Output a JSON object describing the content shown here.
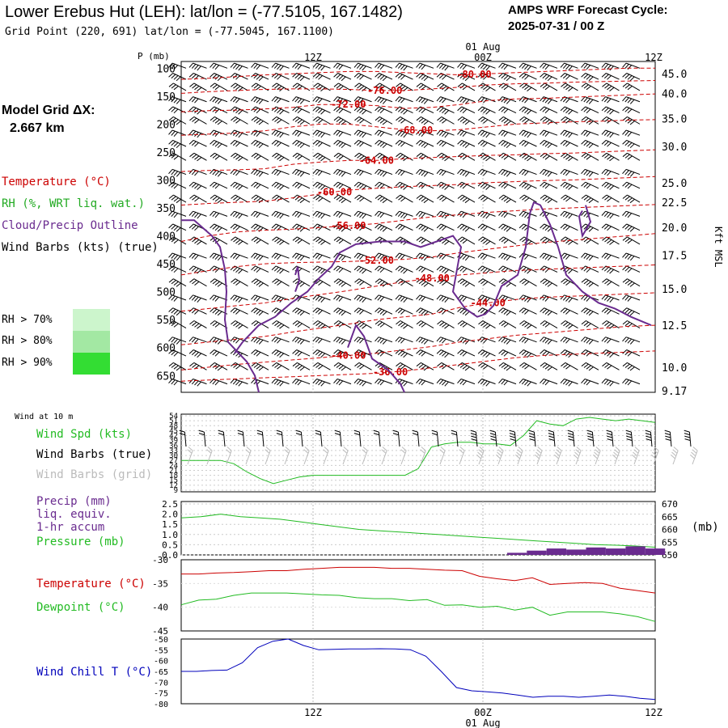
{
  "header": {
    "title": "Lower Erebus Hut (LEH):  lat/lon = (-77.5105, 167.1482)",
    "subtitle": "Grid Point (220, 691) lat/lon = (-77.5045, 167.1100)",
    "cycle_line1": "AMPS WRF Forecast Cycle:",
    "cycle_line2": "2025-07-31 / 00  Z"
  },
  "model_grid": {
    "label": "Model Grid ΔX:",
    "value": "2.667 km"
  },
  "legend": {
    "temperature": "Temperature (°C)",
    "rh": "RH (%, WRT liq. wat.)",
    "cloud": "Cloud/Precip Outline",
    "wind_barbs": "Wind Barbs (kts) (true)",
    "rh70": "RH > 70%",
    "rh80": "RH > 80%",
    "rh90": "RH > 90%"
  },
  "colors": {
    "temperature": "#cc0000",
    "rh": "#22aa22",
    "cloud": "#6a2b8f",
    "rh70": "#ccf5cc",
    "rh80": "#a3e8a3",
    "rh90": "#33dd33",
    "wind_speed": "#22bb22",
    "dewpoint": "#22bb22",
    "wind_chill": "#0000bb",
    "precip": "#6a2b8f",
    "grid_barbs": "#bbbbbb"
  },
  "chart_data": [
    {
      "type": "line",
      "panel": "cross-section",
      "ylabel": "P (mb)",
      "yticks": [
        "100",
        "150",
        "200",
        "250",
        "300",
        "350",
        "400",
        "450",
        "500",
        "550",
        "600",
        "650"
      ],
      "time_ticks_top": [
        "12Z",
        "00Z",
        "12Z"
      ],
      "date_label_top": "01 Aug",
      "right_axis_label": "Kft MSL",
      "right_ticks": [
        "45.0",
        "40.0",
        "35.0",
        "30.0",
        "25.0",
        "22.5",
        "20.0",
        "17.5",
        "15.0",
        "12.5",
        "10.0",
        "9.17"
      ],
      "right_tick_pressure": [
        110,
        145,
        190,
        240,
        305,
        340,
        385,
        435,
        495,
        560,
        635,
        677
      ],
      "temperature_contours": [
        {
          "label": "-80.00",
          "p": [
            120,
            118,
            115,
            112,
            110,
            108,
            106,
            106,
            108,
            110,
            112,
            110,
            108,
            106,
            104,
            102,
            100,
            100
          ]
        },
        {
          "label": "-76.00",
          "p": [
            145,
            142,
            140,
            138,
            137,
            137,
            138,
            140,
            140,
            137,
            134,
            130,
            128,
            127,
            125,
            124,
            123,
            122
          ]
        },
        {
          "label": "-72.00",
          "p": [
            178,
            176,
            175,
            173,
            170,
            165,
            165,
            167,
            172,
            170,
            165,
            158,
            155,
            154,
            152,
            150,
            148,
            146
          ]
        },
        {
          "label": "-68.00",
          "p": [
            220,
            218,
            216,
            212,
            205,
            200,
            200,
            205,
            210,
            212,
            210,
            205,
            200,
            198,
            196,
            195,
            193,
            192
          ]
        },
        {
          "label": "-64.00",
          "p": [
            285,
            283,
            282,
            280,
            272,
            268,
            265,
            265,
            262,
            260,
            258,
            256,
            255,
            253,
            252,
            250,
            248,
            246
          ]
        },
        {
          "label": "-60.00",
          "p": [
            345,
            342,
            340,
            338,
            332,
            325,
            318,
            315,
            312,
            310,
            308,
            305,
            303,
            301,
            300,
            298,
            296,
            294
          ]
        },
        {
          "label": "-56.00",
          "p": [
            410,
            400,
            393,
            390,
            388,
            385,
            382,
            378,
            372,
            366,
            362,
            358,
            355,
            352,
            350,
            348,
            346,
            344
          ]
        },
        {
          "label": "-52.00",
          "p": [
            470,
            462,
            455,
            450,
            448,
            447,
            446,
            444,
            442,
            438,
            430,
            424,
            418,
            412,
            408,
            404,
            400,
            396
          ]
        },
        {
          "label": "-48.00",
          "p": [
            535,
            530,
            525,
            520,
            512,
            505,
            498,
            490,
            482,
            476,
            470,
            466,
            462,
            460,
            458,
            456,
            454,
            452
          ]
        },
        {
          "label": "-44.00",
          "p": [
            595,
            590,
            585,
            580,
            572,
            565,
            558,
            550,
            545,
            540,
            528,
            520,
            514,
            510,
            508,
            506,
            504,
            502
          ]
        },
        {
          "label": "-40.00",
          "p": [
            640,
            635,
            630,
            626,
            622,
            618,
            614,
            610,
            604,
            598,
            590,
            584,
            578,
            574,
            570,
            566,
            562,
            560
          ]
        },
        {
          "label": "-36.00",
          "p": [
            660,
            658,
            656,
            654,
            652,
            650,
            648,
            646,
            642,
            636,
            630,
            624,
            618,
            614,
            612,
            610,
            608,
            606
          ]
        }
      ],
      "temp_label_pos": [
        {
          "label": "-80.00",
          "i": 10.5
        },
        {
          "label": "-76.00",
          "i": 7.3
        },
        {
          "label": "-72.00",
          "i": 6.0
        },
        {
          "label": "-68.00",
          "i": 8.4
        },
        {
          "label": "-64.00",
          "i": 7.0
        },
        {
          "label": "-60.00",
          "i": 5.5
        },
        {
          "label": "-56.00",
          "i": 6.0
        },
        {
          "label": "-52.00",
          "i": 7.0
        },
        {
          "label": "-48.00",
          "i": 9.0
        },
        {
          "label": "-44.00",
          "i": 11.0
        },
        {
          "label": "-40.00",
          "i": 6.0
        },
        {
          "label": "-36.00",
          "i": 7.5
        }
      ]
    },
    {
      "type": "line",
      "panel": "wind",
      "label_header": "Wind at 10 m",
      "series": [
        {
          "name": "Wind Spd (kts)",
          "values": [
            27,
            27,
            27,
            27,
            25,
            20,
            16,
            13,
            15,
            17,
            18,
            18,
            18,
            18,
            18,
            18,
            18,
            18,
            22,
            35,
            37,
            38,
            38,
            37,
            37,
            36,
            42,
            51,
            49,
            48,
            52,
            53,
            52,
            51,
            52,
            51,
            50
          ]
        }
      ],
      "labels": {
        "barbs_true": "Wind Barbs (true)",
        "barbs_grid": "Wind Barbs (grid)"
      },
      "yticks": [
        "54",
        "51",
        "48",
        "45",
        "42",
        "39",
        "36",
        "33",
        "30",
        "27",
        "24",
        "21",
        "18",
        "15",
        "12",
        "9"
      ],
      "ylim": [
        9,
        54
      ]
    },
    {
      "type": "line",
      "panel": "precip-pressure",
      "series": [
        {
          "name": "Pressure (mb)",
          "values": [
            664.5,
            665,
            666,
            665,
            664.5,
            664,
            663,
            662,
            661,
            660,
            659.5,
            659,
            658.5,
            658,
            657.5,
            657,
            656.5,
            656,
            655.5,
            655,
            654.5,
            654,
            653.8,
            653.5,
            653
          ]
        },
        {
          "name": "Precip (mm)",
          "values": [
            0,
            0,
            0,
            0,
            0,
            0,
            0,
            0,
            0,
            0,
            0,
            0,
            0,
            0,
            0,
            0,
            0,
            0.1,
            0.2,
            0.3,
            0.25,
            0.35,
            0.3,
            0.4,
            0.3
          ]
        }
      ],
      "labels": {
        "precip": "Precip (mm)",
        "liq": "liq. equiv.",
        "accum": "1-hr accum",
        "pressure": "Pressure (mb)",
        "unit": "(mb)"
      },
      "yticks_left": [
        "2.5",
        "2.0",
        "1.5",
        "1.0",
        "0.5",
        "0.0"
      ],
      "yticks_right": [
        "670",
        "665",
        "660",
        "655",
        "650"
      ],
      "ylim_left": [
        0,
        2.5
      ],
      "ylim_right": [
        650,
        670
      ]
    },
    {
      "type": "line",
      "panel": "temp-dewpoint",
      "series": [
        {
          "name": "Temperature (°C)",
          "values": [
            -33,
            -33,
            -32.8,
            -32.7,
            -32.5,
            -32.3,
            -32.3,
            -32,
            -31.8,
            -31.6,
            -31.6,
            -31.6,
            -31.8,
            -31.8,
            -32,
            -32.2,
            -32.3,
            -33.5,
            -34,
            -34.4,
            -33.8,
            -35.2,
            -35,
            -34.8,
            -35,
            -36,
            -36.5,
            -37
          ]
        },
        {
          "name": "Dewpoint (°C)",
          "values": [
            -39.5,
            -38.5,
            -38.3,
            -37.5,
            -37,
            -37,
            -37,
            -37.2,
            -37.4,
            -37.5,
            -38,
            -38.2,
            -38.2,
            -38.6,
            -38.4,
            -39.6,
            -39.5,
            -40,
            -39.8,
            -40.6,
            -40,
            -41.7,
            -41,
            -41,
            -41,
            -41.4,
            -42,
            -43
          ]
        }
      ],
      "yticks": [
        "-30",
        "-35",
        "-40",
        "-45"
      ],
      "ylim": [
        -45,
        -30
      ]
    },
    {
      "type": "line",
      "panel": "wind-chill",
      "series": [
        {
          "name": "Wind Chill T (°C)",
          "values": [
            -65,
            -65,
            -64.6,
            -64.4,
            -61,
            -54,
            -51,
            -50,
            -53,
            -55,
            -54.8,
            -54.6,
            -54.6,
            -54.5,
            -54.6,
            -55,
            -58,
            -65,
            -72.5,
            -74,
            -74.5,
            -75,
            -76,
            -77,
            -76.5,
            -76.5,
            -77,
            -76.5,
            -76,
            -76.5,
            -77.5,
            -78
          ]
        }
      ],
      "yticks": [
        "-50",
        "-55",
        "-60",
        "-65",
        "-70",
        "-75",
        "-80"
      ],
      "ylim": [
        -80,
        -50
      ],
      "time_ticks_bottom": [
        "12Z",
        "00Z",
        "12Z"
      ],
      "date_label_bottom": "01 Aug"
    }
  ]
}
